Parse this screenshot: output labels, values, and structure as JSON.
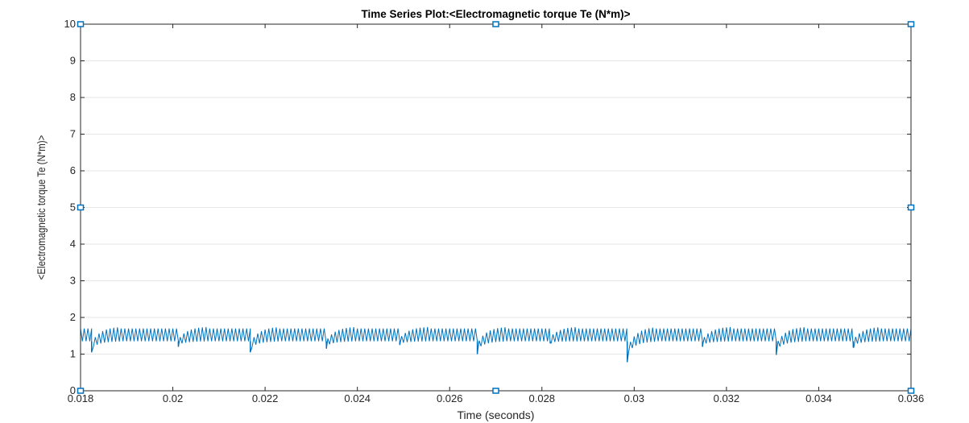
{
  "colors": {
    "background": "#ffffff",
    "axes": "#262626",
    "grid": "#e6e6e6",
    "series": "#0072bd",
    "handle_fill": "#ffffff",
    "handle_stroke": "#0072bd"
  },
  "chart_data": {
    "type": "line",
    "title": "Time Series Plot:<Electromagnetic torque Te (N*m)>",
    "xlabel": "Time (seconds)",
    "ylabel": "<Electromagnetic torque Te (N*m)>",
    "xlim": [
      0.018,
      0.036
    ],
    "ylim": [
      0,
      10
    ],
    "grid": "on (horizontal)",
    "xticks": [
      0.018,
      0.02,
      0.022,
      0.024,
      0.026,
      0.028,
      0.03,
      0.032,
      0.034,
      0.036
    ],
    "xtick_labels": [
      "0.018",
      "0.02",
      "0.022",
      "0.024",
      "0.026",
      "0.028",
      "0.03",
      "0.032",
      "0.034",
      "0.036"
    ],
    "yticks": [
      0,
      1,
      2,
      3,
      4,
      5,
      6,
      7,
      8,
      9,
      10
    ],
    "ytick_labels": [
      "0",
      "1",
      "2",
      "3",
      "4",
      "5",
      "6",
      "7",
      "8",
      "9",
      "10"
    ],
    "series": [
      {
        "mean_value": 1.5,
        "ripple_band": [
          1.35,
          1.7
        ],
        "ripple_period": 8e-05,
        "dips": [
          {
            "x": 0.01824,
            "y": 1.05
          },
          {
            "x": 0.02012,
            "y": 1.2
          },
          {
            "x": 0.02168,
            "y": 1.05
          },
          {
            "x": 0.02333,
            "y": 1.15
          },
          {
            "x": 0.02492,
            "y": 1.25
          },
          {
            "x": 0.0266,
            "y": 1.0
          },
          {
            "x": 0.02818,
            "y": 1.3
          },
          {
            "x": 0.02985,
            "y": 0.78
          },
          {
            "x": 0.03148,
            "y": 1.2
          },
          {
            "x": 0.03308,
            "y": 0.98
          },
          {
            "x": 0.03475,
            "y": 1.18
          }
        ]
      }
    ],
    "handles": [
      {
        "x": 0.018,
        "y": 10
      },
      {
        "x": 0.027,
        "y": 10
      },
      {
        "x": 0.036,
        "y": 10
      },
      {
        "x": 0.018,
        "y": 5
      },
      {
        "x": 0.036,
        "y": 5
      },
      {
        "x": 0.018,
        "y": 0
      },
      {
        "x": 0.027,
        "y": 0
      },
      {
        "x": 0.036,
        "y": 0
      }
    ]
  }
}
